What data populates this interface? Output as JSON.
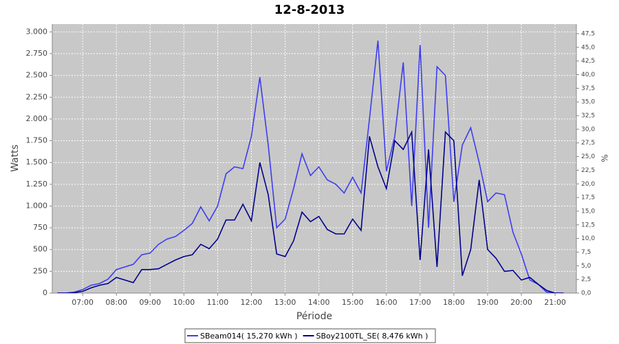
{
  "chart_data": {
    "type": "line",
    "title": "12-8-2013",
    "xlabel": "Période",
    "ylabel": "Watts",
    "y2label": "%",
    "x": [
      6.25,
      6.5,
      6.75,
      7,
      7.25,
      7.5,
      7.75,
      8,
      8.25,
      8.5,
      8.75,
      9,
      9.25,
      9.5,
      9.75,
      10,
      10.25,
      10.5,
      10.75,
      11,
      11.25,
      11.5,
      11.75,
      12,
      12.25,
      12.5,
      12.75,
      13,
      13.25,
      13.5,
      13.75,
      14,
      14.25,
      14.5,
      14.75,
      15,
      15.25,
      15.5,
      15.75,
      16,
      16.25,
      16.5,
      16.75,
      17,
      17.25,
      17.5,
      17.75,
      18,
      18.25,
      18.5,
      18.75,
      19,
      19.25,
      19.5,
      19.75,
      20,
      20.25,
      20.5,
      20.75,
      21,
      21.25
    ],
    "series": [
      {
        "name": "SBeam014( 15,270 kWh )",
        "color": "#3c3cf0",
        "values": [
          0,
          0,
          10,
          40,
          90,
          110,
          160,
          270,
          300,
          330,
          440,
          460,
          560,
          620,
          650,
          720,
          800,
          990,
          830,
          1000,
          1370,
          1450,
          1430,
          1800,
          2480,
          1700,
          750,
          850,
          1200,
          1600,
          1350,
          1450,
          1300,
          1250,
          1150,
          1330,
          1150,
          2000,
          2900,
          1400,
          1800,
          2650,
          1000,
          2850,
          750,
          2600,
          2500,
          1050,
          1700,
          1900,
          1500,
          1050,
          1150,
          1130,
          700,
          450,
          150,
          100,
          10,
          0,
          0
        ]
      },
      {
        "name": "SBoy2100TL_SE( 8,476 kWh )",
        "color": "#00008c",
        "values": [
          0,
          0,
          5,
          20,
          60,
          90,
          110,
          180,
          150,
          120,
          270,
          270,
          280,
          330,
          380,
          420,
          440,
          560,
          510,
          620,
          840,
          840,
          1020,
          830,
          1500,
          1130,
          450,
          420,
          600,
          930,
          820,
          880,
          730,
          680,
          680,
          850,
          720,
          1800,
          1450,
          1200,
          1750,
          1650,
          1850,
          380,
          1650,
          300,
          1850,
          1750,
          200,
          500,
          1300,
          500,
          400,
          250,
          260,
          150,
          180,
          100,
          30,
          0,
          0
        ]
      }
    ],
    "xlim": [
      6.1,
      21.63
    ],
    "xticks": [
      {
        "value": 7,
        "label": "07:00"
      },
      {
        "value": 8,
        "label": "08:00"
      },
      {
        "value": 9,
        "label": "09:00"
      },
      {
        "value": 10,
        "label": "10:00"
      },
      {
        "value": 11,
        "label": "11:00"
      },
      {
        "value": 12,
        "label": "12:00"
      },
      {
        "value": 13,
        "label": "13:00"
      },
      {
        "value": 14,
        "label": "14:00"
      },
      {
        "value": 15,
        "label": "15:00"
      },
      {
        "value": 16,
        "label": "16:00"
      },
      {
        "value": 17,
        "label": "17:00"
      },
      {
        "value": 18,
        "label": "18:00"
      },
      {
        "value": 19,
        "label": "19:00"
      },
      {
        "value": 20,
        "label": "20:00"
      },
      {
        "value": 21,
        "label": "21:00"
      }
    ],
    "ylim": [
      0,
      3090
    ],
    "yticks": [
      0,
      250,
      500,
      750,
      {
        "value": 1000,
        "label": "1.000"
      },
      {
        "value": 1250,
        "label": "1.250"
      },
      {
        "value": 1500,
        "label": "1.500"
      },
      {
        "value": 1750,
        "label": "1.750"
      },
      {
        "value": 2000,
        "label": "2.000"
      },
      {
        "value": 2250,
        "label": "2.250"
      },
      {
        "value": 2500,
        "label": "2.500"
      },
      {
        "value": 2750,
        "label": "2.750"
      },
      {
        "value": 3000,
        "label": "3.000"
      }
    ],
    "y2lim": [
      0,
      49.26
    ],
    "y2ticks": [
      {
        "value": 0,
        "label": "0,0"
      },
      {
        "value": 2.5,
        "label": "2,5"
      },
      {
        "value": 5,
        "label": "5,0"
      },
      {
        "value": 7.5,
        "label": "7,5"
      },
      {
        "value": 10,
        "label": "10,0"
      },
      {
        "value": 12.5,
        "label": "12,5"
      },
      {
        "value": 15,
        "label": "15,0"
      },
      {
        "value": 17.5,
        "label": "17,5"
      },
      {
        "value": 20,
        "label": "20,0"
      },
      {
        "value": 22.5,
        "label": "22,5"
      },
      {
        "value": 25,
        "label": "25,0"
      },
      {
        "value": 27.5,
        "label": "27,5"
      },
      {
        "value": 30,
        "label": "30,0"
      },
      {
        "value": 32.5,
        "label": "32,5"
      },
      {
        "value": 35,
        "label": "35,0"
      },
      {
        "value": 37.5,
        "label": "37,5"
      },
      {
        "value": 40,
        "label": "40,0"
      },
      {
        "value": 42.5,
        "label": "42,5"
      },
      {
        "value": 45,
        "label": "45,0"
      },
      {
        "value": 47.5,
        "label": "47,5"
      }
    ],
    "grid": true,
    "legend": "bottom"
  }
}
